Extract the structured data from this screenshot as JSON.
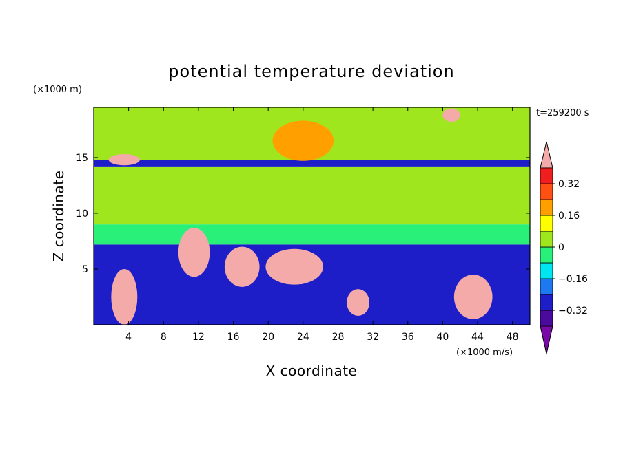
{
  "chart_data": {
    "type": "heatmap",
    "title": "potential temperature deviation",
    "xlabel": "X coordinate",
    "ylabel": "Z coordinate",
    "x_unit": "(×1000 m/s)",
    "y_unit": "(×1000 m)",
    "time_label": "t=259200 s",
    "xlim": [
      0,
      50
    ],
    "ylim": [
      0,
      19.5
    ],
    "x_ticks": [
      4,
      8,
      12,
      16,
      20,
      24,
      28,
      32,
      36,
      40,
      44,
      48
    ],
    "y_ticks": [
      5,
      10,
      15
    ],
    "colorbar": {
      "levels": [
        -0.4,
        -0.32,
        -0.24,
        -0.16,
        -0.08,
        0,
        0.08,
        0.16,
        0.24,
        0.32,
        0.4
      ],
      "labels": [
        "0.32",
        "0.16",
        "0",
        "−0.16",
        "−0.32"
      ],
      "label_values": [
        0.32,
        0.16,
        0,
        -0.16,
        -0.32
      ],
      "colors": [
        "#7a0aa8",
        "#4a0a9e",
        "#1e1ec8",
        "#1e78f0",
        "#00e6f0",
        "#28f078",
        "#a0e61e",
        "#ffff00",
        "#ffa000",
        "#ff5014",
        "#f01e1e",
        "#f5aaaa"
      ]
    },
    "features": [
      {
        "kind": "band",
        "z_range": [
          0,
          3.5
        ],
        "value": -0.3
      },
      {
        "kind": "band",
        "z_range": [
          3.5,
          7.2
        ],
        "value": -0.28
      },
      {
        "kind": "band",
        "z_range": [
          7.2,
          9
        ],
        "value": -0.05
      },
      {
        "kind": "band",
        "z_range": [
          9,
          14.2
        ],
        "value": 0.05
      },
      {
        "kind": "band",
        "z_range": [
          14.2,
          14.8
        ],
        "value": -0.3
      },
      {
        "kind": "band",
        "z_range": [
          14.8,
          19.5
        ],
        "value": 0.02
      },
      {
        "kind": "blob",
        "x": 3.5,
        "z": 2.5,
        "rx": 1.5,
        "rz": 2.5,
        "value": 0.45
      },
      {
        "kind": "blob",
        "x": 11.5,
        "z": 6.5,
        "rx": 1.8,
        "rz": 2.2,
        "value": 0.45
      },
      {
        "kind": "blob",
        "x": 17,
        "z": 5.2,
        "rx": 2.0,
        "rz": 1.8,
        "value": 0.45
      },
      {
        "kind": "blob",
        "x": 23,
        "z": 5.2,
        "rx": 3.3,
        "rz": 1.6,
        "value": 0.45
      },
      {
        "kind": "blob",
        "x": 30.3,
        "z": 2.0,
        "rx": 1.3,
        "rz": 1.2,
        "value": 0.45
      },
      {
        "kind": "blob",
        "x": 43.5,
        "z": 2.5,
        "rx": 2.2,
        "rz": 2.0,
        "value": 0.45
      },
      {
        "kind": "blob",
        "x": 3.5,
        "z": 14.8,
        "rx": 1.8,
        "rz": 0.5,
        "value": 0.45
      },
      {
        "kind": "blob",
        "x": 41,
        "z": 18.8,
        "rx": 1.0,
        "rz": 0.6,
        "value": 0.45
      },
      {
        "kind": "blob",
        "x": 24,
        "z": 16.5,
        "rx": 3.5,
        "rz": 1.8,
        "value": 0.16
      }
    ]
  }
}
